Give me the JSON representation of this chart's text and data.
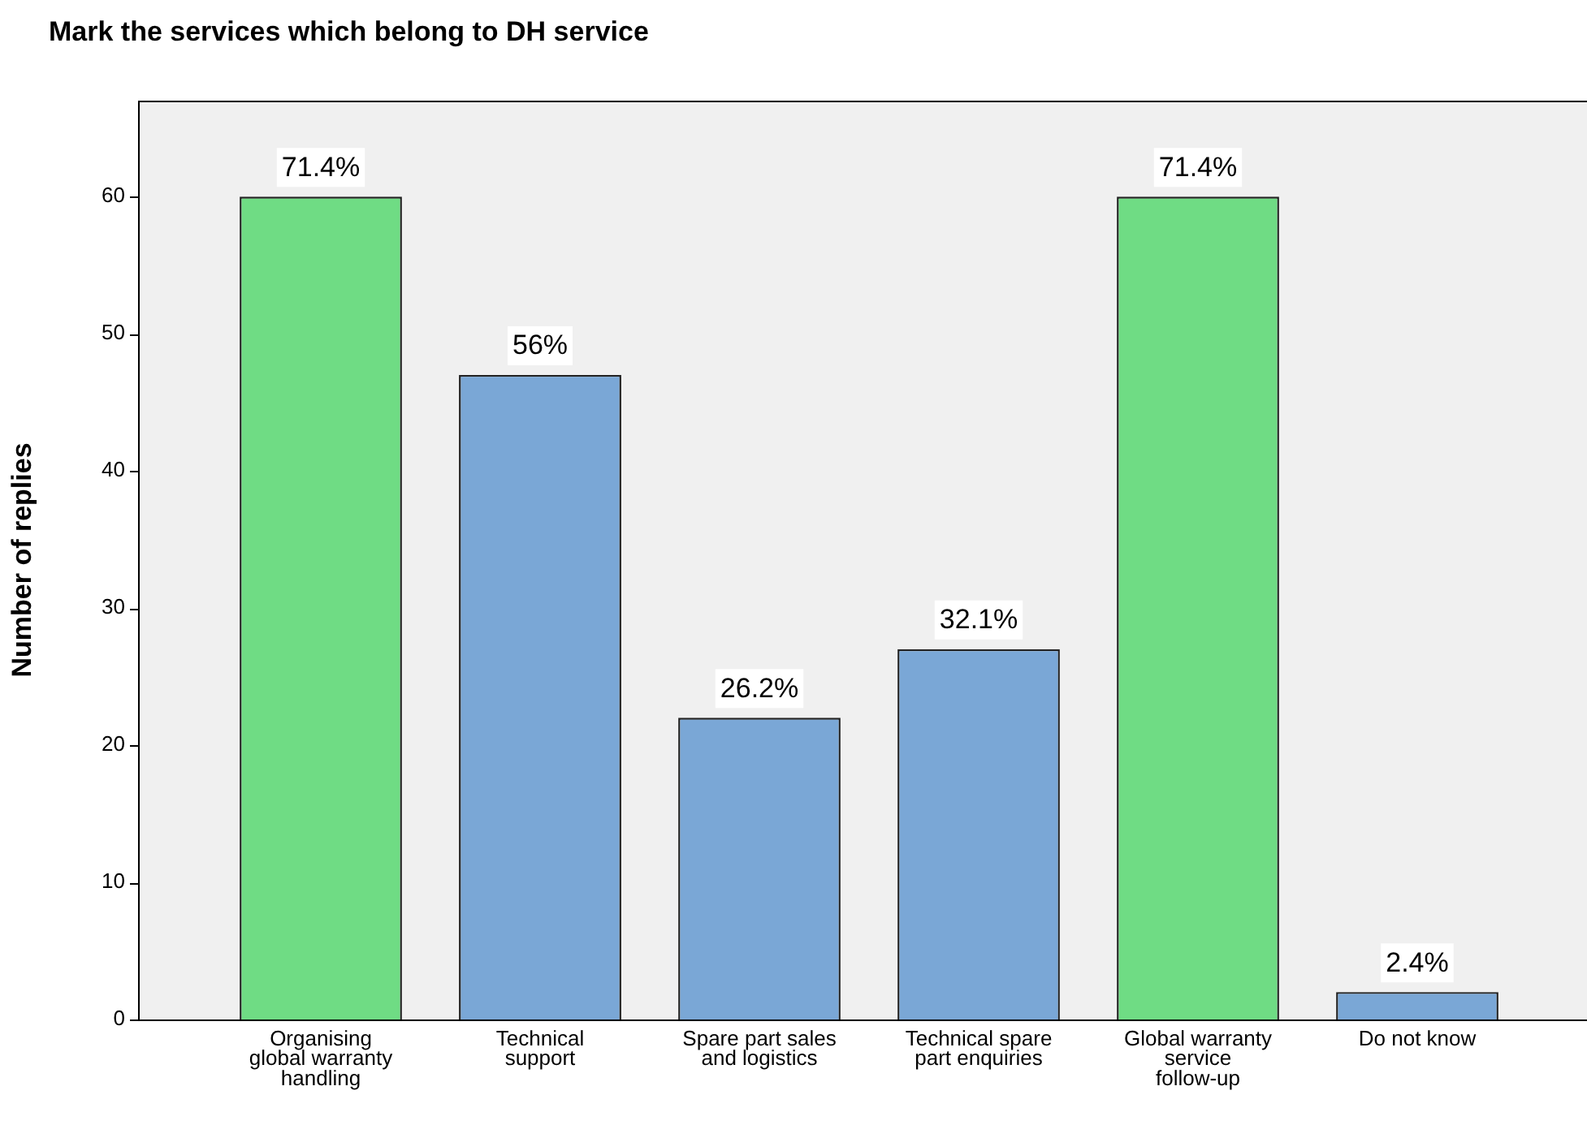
{
  "chart_data": {
    "type": "bar",
    "title": "Mark the services which belong to DH service",
    "ylabel": "Number of replies",
    "categories": [
      "Organising global warranty handling",
      "Technical support",
      "Spare part sales and logistics",
      "Technical spare part enquiries",
      "Global warranty service follow-up",
      "Do not know"
    ],
    "values": [
      60,
      47,
      22,
      27,
      60,
      2
    ],
    "colors": [
      "#6fdc84",
      "#7aa7d6",
      "#7aa7d6",
      "#7aa7d6",
      "#6fdc84",
      "#7aa7d6"
    ],
    "annotations": [
      {
        "text": "71.4%",
        "x": "Organising global warranty handling",
        "y": 60
      },
      {
        "text": "56%",
        "x": "Technical support",
        "y": 47
      },
      {
        "text": "26.2%",
        "x": "Spare part sales and logistics",
        "y": 22
      },
      {
        "text": "32.1%",
        "x": "Technical spare part enquiries",
        "y": 27
      },
      {
        "text": "71.4%",
        "x": "Global warranty service follow-up",
        "y": 60
      },
      {
        "text": "2.4%",
        "x": "Do not know",
        "y": 2
      }
    ],
    "ylim": [
      0,
      67
    ],
    "yticks": [
      0,
      10,
      20,
      30,
      40,
      50,
      60
    ],
    "grid": false,
    "legend": false
  }
}
